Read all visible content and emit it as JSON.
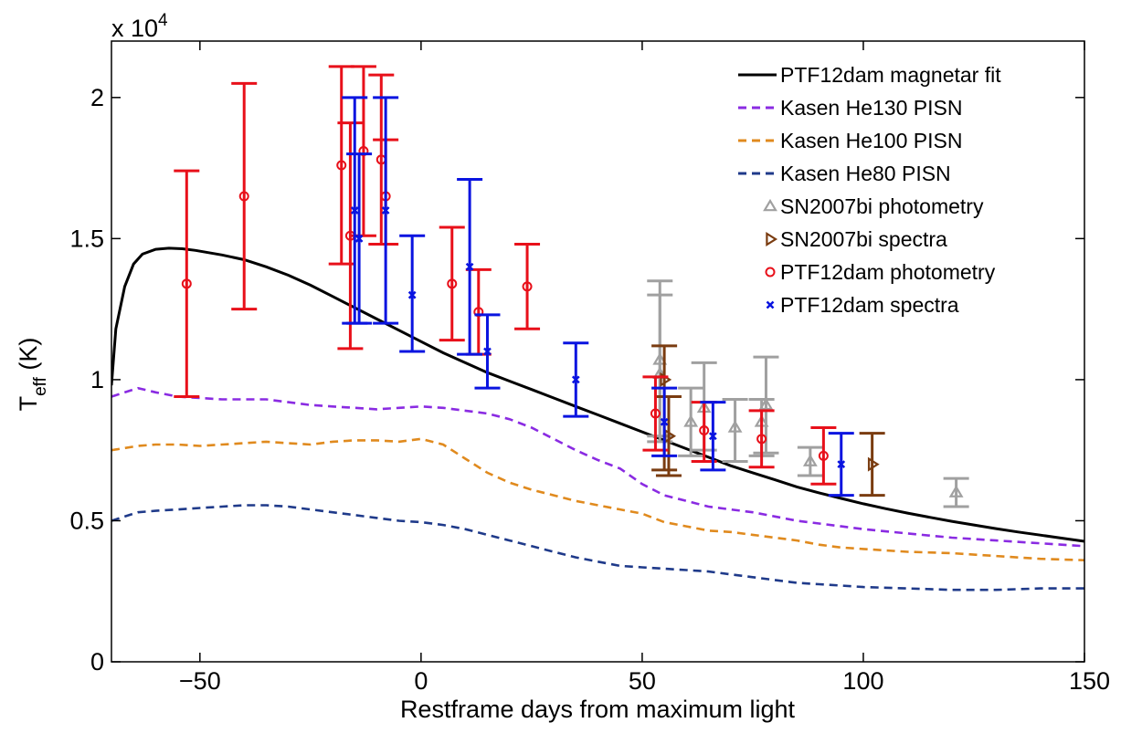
{
  "chart_data": {
    "type": "scatter",
    "xlabel": "Restframe days from maximum light",
    "ylabel_main": "T",
    "ylabel_sub": "eff",
    "ylabel_unit": " (K)",
    "y_multiplier": "x 10",
    "y_multiplier_exp": "4",
    "xlim": [
      -70,
      150
    ],
    "ylim": [
      0,
      22000
    ],
    "xticks": [
      -50,
      0,
      50,
      100,
      150
    ],
    "xtick_labels": [
      "−50",
      "0",
      "50",
      "100",
      "150"
    ],
    "yticks": [
      0,
      5000,
      10000,
      15000,
      20000
    ],
    "ytick_labels": [
      "0",
      "0.5",
      "1",
      "1.5",
      "2"
    ],
    "grid": false,
    "legend_position": "top-right",
    "series": [
      {
        "name": "PTF12dam magnetar fit",
        "kind": "line",
        "style": "solid",
        "color": "#000000",
        "x": [
          -70,
          -69,
          -67,
          -65,
          -63,
          -60,
          -57,
          -54,
          -51,
          -45,
          -40,
          -35,
          -30,
          -25,
          -20,
          -15,
          -10,
          -5,
          0,
          5,
          10,
          15,
          20,
          25,
          30,
          35,
          40,
          45,
          50,
          55,
          60,
          65,
          70,
          75,
          80,
          85,
          90,
          95,
          100,
          105,
          110,
          115,
          120,
          125,
          130,
          135,
          140,
          145,
          150
        ],
        "y": [
          9800,
          11800,
          13300,
          14100,
          14450,
          14620,
          14660,
          14640,
          14580,
          14420,
          14250,
          14000,
          13700,
          13350,
          12950,
          12550,
          12150,
          11750,
          11350,
          10950,
          10600,
          10250,
          9950,
          9650,
          9350,
          9050,
          8750,
          8450,
          8150,
          7850,
          7550,
          7250,
          6950,
          6700,
          6450,
          6200,
          5990,
          5790,
          5600,
          5430,
          5270,
          5120,
          4980,
          4850,
          4720,
          4600,
          4490,
          4380,
          4270
        ]
      },
      {
        "name": "Kasen He130 PISN",
        "kind": "line",
        "style": "dashed",
        "color": "#8a2be2",
        "x": [
          -70,
          -64,
          -60,
          -55,
          -50,
          -45,
          -40,
          -35,
          -30,
          -25,
          -20,
          -15,
          -10,
          -5,
          0,
          5,
          10,
          15,
          20,
          25,
          30,
          35,
          40,
          45,
          50,
          55,
          60,
          65,
          70,
          75,
          80,
          85,
          90,
          95,
          100,
          110,
          120,
          130,
          140,
          150
        ],
        "y": [
          9400,
          9700,
          9550,
          9400,
          9350,
          9300,
          9300,
          9300,
          9200,
          9100,
          9050,
          9000,
          8950,
          9000,
          9050,
          9000,
          8900,
          8800,
          8600,
          8300,
          7900,
          7500,
          7150,
          6850,
          6300,
          5900,
          5700,
          5500,
          5400,
          5300,
          5150,
          5000,
          4900,
          4800,
          4700,
          4550,
          4400,
          4300,
          4200,
          4100
        ]
      },
      {
        "name": "Kasen He100 PISN",
        "kind": "line",
        "style": "dashed",
        "color": "#e08a1e",
        "x": [
          -70,
          -64,
          -60,
          -55,
          -50,
          -45,
          -40,
          -35,
          -30,
          -25,
          -20,
          -15,
          -10,
          -5,
          0,
          5,
          10,
          15,
          20,
          25,
          30,
          35,
          40,
          45,
          50,
          55,
          60,
          65,
          70,
          75,
          80,
          85,
          90,
          95,
          100,
          110,
          120,
          130,
          140,
          150
        ],
        "y": [
          7500,
          7650,
          7700,
          7700,
          7650,
          7700,
          7750,
          7800,
          7750,
          7700,
          7800,
          7850,
          7850,
          7800,
          7900,
          7700,
          7200,
          6700,
          6350,
          6100,
          5900,
          5700,
          5550,
          5400,
          5250,
          4950,
          4800,
          4650,
          4600,
          4500,
          4400,
          4300,
          4150,
          4050,
          4000,
          3900,
          3850,
          3750,
          3650,
          3600
        ]
      },
      {
        "name": "Kasen He80 PISN",
        "kind": "line",
        "style": "dashed",
        "color": "#1f3a8a",
        "x": [
          -70,
          -64,
          -60,
          -55,
          -50,
          -45,
          -40,
          -35,
          -30,
          -25,
          -20,
          -15,
          -10,
          -5,
          0,
          5,
          10,
          15,
          20,
          25,
          30,
          35,
          40,
          45,
          50,
          55,
          60,
          65,
          70,
          75,
          80,
          85,
          90,
          95,
          100,
          110,
          120,
          130,
          140,
          150
        ],
        "y": [
          5000,
          5300,
          5350,
          5400,
          5450,
          5500,
          5550,
          5550,
          5500,
          5400,
          5300,
          5200,
          5100,
          5000,
          4950,
          4850,
          4700,
          4500,
          4300,
          4100,
          3900,
          3700,
          3550,
          3400,
          3350,
          3300,
          3250,
          3200,
          3100,
          3000,
          2900,
          2800,
          2750,
          2700,
          2650,
          2600,
          2550,
          2550,
          2600,
          2600
        ]
      },
      {
        "name": "SN2007bi photometry",
        "kind": "errorbar",
        "marker": "triangle",
        "color": "#a0a0a0",
        "points": [
          {
            "x": 54,
            "y": 10700,
            "lo": 8000,
            "hi": 13500
          },
          {
            "x": 54,
            "y": 10200,
            "lo": 7800,
            "hi": 13000
          },
          {
            "x": 61,
            "y": 8500,
            "lo": 7300,
            "hi": 9700
          },
          {
            "x": 64,
            "y": 9000,
            "lo": 7500,
            "hi": 10600
          },
          {
            "x": 71,
            "y": 8300,
            "lo": 7100,
            "hi": 9300
          },
          {
            "x": 77,
            "y": 8500,
            "lo": 7300,
            "hi": 9300
          },
          {
            "x": 78,
            "y": 9100,
            "lo": 7400,
            "hi": 10800
          },
          {
            "x": 88,
            "y": 7100,
            "lo": 6600,
            "hi": 7600
          },
          {
            "x": 121,
            "y": 6000,
            "lo": 5500,
            "hi": 6500
          }
        ]
      },
      {
        "name": "SN2007bi spectra",
        "kind": "errorbar",
        "marker": "triangle-right",
        "color": "#7a3c10",
        "points": [
          {
            "x": 55,
            "y": 10000,
            "lo": 6800,
            "hi": 11200
          },
          {
            "x": 56,
            "y": 8000,
            "lo": 6600,
            "hi": 9400
          },
          {
            "x": 102,
            "y": 7000,
            "lo": 5900,
            "hi": 8100
          }
        ]
      },
      {
        "name": "PTF12dam photometry",
        "kind": "errorbar",
        "marker": "circle",
        "color": "#e8101a",
        "points": [
          {
            "x": -53,
            "y": 13400,
            "lo": 9400,
            "hi": 17400
          },
          {
            "x": -40,
            "y": 16500,
            "lo": 12500,
            "hi": 20500
          },
          {
            "x": -18,
            "y": 17600,
            "lo": 14100,
            "hi": 21100
          },
          {
            "x": -16,
            "y": 15100,
            "lo": 11100,
            "hi": 19100
          },
          {
            "x": -13,
            "y": 18100,
            "lo": 15100,
            "hi": 21100
          },
          {
            "x": -9,
            "y": 17800,
            "lo": 14800,
            "hi": 20800
          },
          {
            "x": -8,
            "y": 16500,
            "lo": 14800,
            "hi": 18500
          },
          {
            "x": 7,
            "y": 13400,
            "lo": 11400,
            "hi": 15400
          },
          {
            "x": 13,
            "y": 12400,
            "lo": 10900,
            "hi": 13900
          },
          {
            "x": 24,
            "y": 13300,
            "lo": 11800,
            "hi": 14800
          },
          {
            "x": 53,
            "y": 8800,
            "lo": 7500,
            "hi": 10100
          },
          {
            "x": 64,
            "y": 8200,
            "lo": 7100,
            "hi": 9200
          },
          {
            "x": 77,
            "y": 7900,
            "lo": 6900,
            "hi": 8900
          },
          {
            "x": 91,
            "y": 7300,
            "lo": 6300,
            "hi": 8300
          }
        ]
      },
      {
        "name": "PTF12dam spectra",
        "kind": "errorbar",
        "marker": "x",
        "color": "#0a14e0",
        "points": [
          {
            "x": -15,
            "y": 16000,
            "lo": 12000,
            "hi": 20000
          },
          {
            "x": -14,
            "y": 15000,
            "lo": 12000,
            "hi": 18000
          },
          {
            "x": -8,
            "y": 16000,
            "lo": 12000,
            "hi": 20000
          },
          {
            "x": -2,
            "y": 13000,
            "lo": 11000,
            "hi": 15100
          },
          {
            "x": 11,
            "y": 14000,
            "lo": 10900,
            "hi": 17100
          },
          {
            "x": 15,
            "y": 11000,
            "lo": 9700,
            "hi": 12300
          },
          {
            "x": 35,
            "y": 10000,
            "lo": 8700,
            "hi": 11300
          },
          {
            "x": 55,
            "y": 8500,
            "lo": 7300,
            "hi": 9700
          },
          {
            "x": 66,
            "y": 8000,
            "lo": 6800,
            "hi": 9200
          },
          {
            "x": 95,
            "y": 7000,
            "lo": 5900,
            "hi": 8100
          }
        ]
      }
    ]
  }
}
